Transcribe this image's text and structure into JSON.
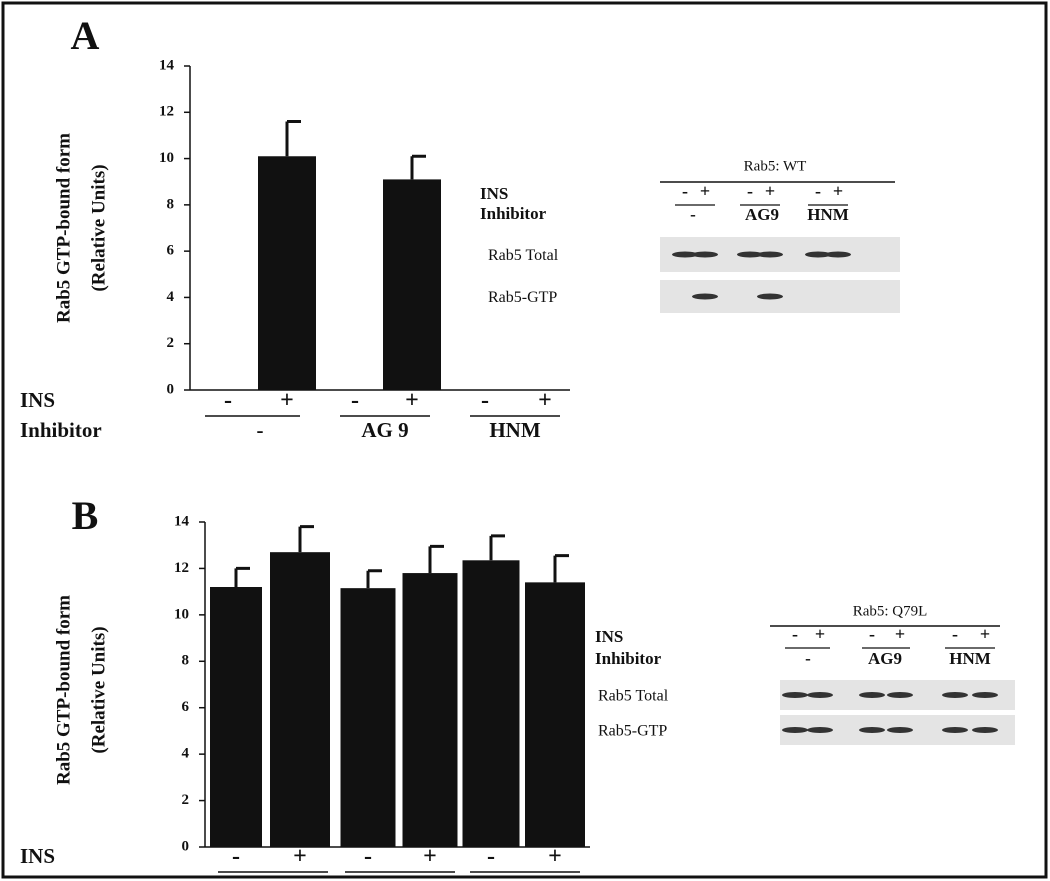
{
  "chart_data": [
    {
      "type": "bar",
      "panel": "A",
      "y_label": "Rab5 GTP-bound form",
      "y_label_units": "(Relative Units)",
      "row_labels": [
        "INS",
        "Inhibitor"
      ],
      "categories": [
        "-",
        "+",
        "-",
        "+",
        "-",
        "+"
      ],
      "groups": [
        "-",
        "AG 9",
        "HNM"
      ],
      "values": [
        0,
        10.1,
        0,
        9.1,
        0,
        0
      ],
      "errors": [
        null,
        1.5,
        null,
        1.0,
        null,
        null
      ],
      "color": "#111111",
      "ylim": [
        0,
        14
      ],
      "yticks": [
        0,
        2,
        4,
        6,
        8,
        10,
        12,
        14
      ],
      "blot": {
        "title": "Rab5: WT",
        "row_labels": [
          "INS",
          "Inhibitor"
        ],
        "ins": [
          "-",
          "+",
          "-",
          "+",
          "-",
          "+"
        ],
        "groups": [
          "-",
          "AG9",
          "HNM"
        ],
        "lanes": [
          "Rab5 Total",
          "Rab5-GTP"
        ]
      }
    },
    {
      "type": "bar",
      "panel": "B",
      "y_label": "Rab5 GTP-bound form",
      "y_label_units": "(Relative Units)",
      "row_labels": [
        "INS"
      ],
      "categories": [
        "-",
        "+",
        "-",
        "+",
        "-",
        "+"
      ],
      "values": [
        11.2,
        12.7,
        11.15,
        11.8,
        12.35,
        11.4
      ],
      "errors": [
        0.8,
        1.1,
        0.75,
        1.15,
        1.05,
        1.15
      ],
      "color": "#111111",
      "ylim": [
        0,
        14
      ],
      "yticks": [
        0,
        2,
        4,
        6,
        8,
        10,
        12,
        14
      ],
      "blot": {
        "title": "Rab5: Q79L",
        "row_labels": [
          "INS",
          "Inhibitor"
        ],
        "ins": [
          "-",
          "+",
          "-",
          "+",
          "-",
          "+"
        ],
        "groups": [
          "-",
          "AG9",
          "HNM"
        ],
        "lanes": [
          "Rab5 Total",
          "Rab5-GTP"
        ]
      }
    }
  ]
}
